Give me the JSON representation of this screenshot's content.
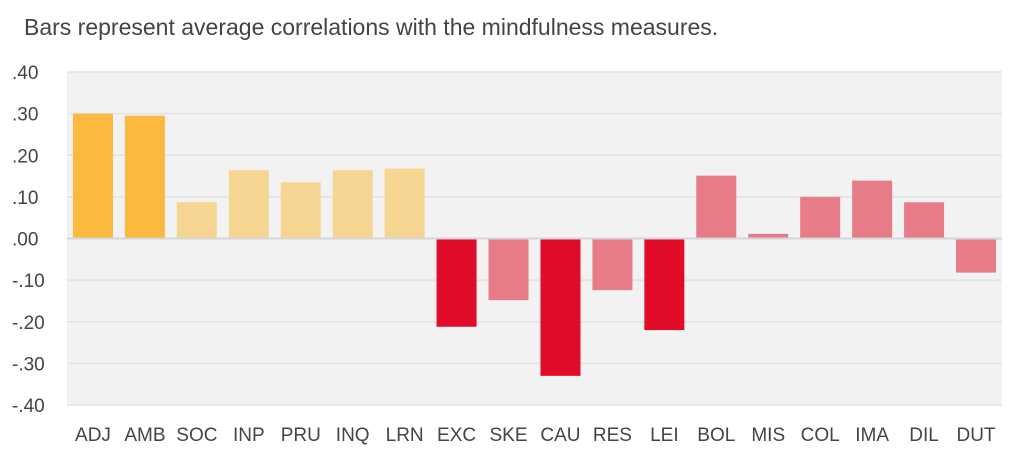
{
  "chart_data": {
    "type": "bar",
    "title": "Bars represent average correlations with the mindfulness measures.",
    "xlabel": "",
    "ylabel": "",
    "ylim": [
      -0.4,
      0.4
    ],
    "yticks": [
      0.4,
      0.3,
      0.2,
      0.1,
      0.0,
      -0.1,
      -0.2,
      -0.3,
      -0.4
    ],
    "ytick_labels": [
      ".40",
      ".30",
      ".20",
      ".10",
      ".00",
      "-.10",
      "-.20",
      "-.30",
      "-.40"
    ],
    "grid": true,
    "categories": [
      "ADJ",
      "AMB",
      "SOC",
      "INP",
      "PRU",
      "INQ",
      "LRN",
      "EXC",
      "SKE",
      "CAU",
      "RES",
      "LEI",
      "BOL",
      "MIS",
      "COL",
      "IMA",
      "DIL",
      "DUT"
    ],
    "values": [
      0.3,
      0.295,
      0.087,
      0.164,
      0.135,
      0.164,
      0.168,
      -0.212,
      -0.148,
      -0.33,
      -0.124,
      -0.22,
      0.151,
      0.011,
      0.1,
      0.139,
      0.087,
      -0.082
    ],
    "bar_colors": [
      "#fbb93f",
      "#fbb93f",
      "#f6d593",
      "#f6d593",
      "#f6d593",
      "#f6d593",
      "#f6d593",
      "#e00c29",
      "#e77b88",
      "#e00c29",
      "#e77b88",
      "#e00c29",
      "#e77b88",
      "#e77b88",
      "#e77b88",
      "#e77b88",
      "#e77b88",
      "#e77b88"
    ],
    "colors": {
      "plot_background": "#f2f2f2",
      "gridline": "#e2e2e2",
      "text": "#444444"
    }
  }
}
